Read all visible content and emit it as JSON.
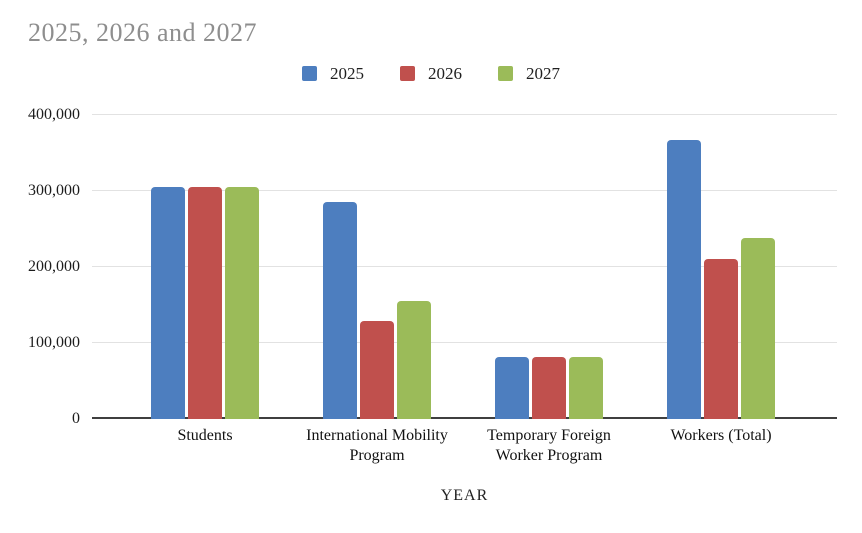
{
  "title": "2025, 2026 and 2027",
  "axis": {
    "x_title": "YEAR",
    "y_ticks": [
      "0",
      "100,000",
      "200,000",
      "300,000",
      "400,000"
    ]
  },
  "colors": {
    "series_2025": "#4d7ebf",
    "series_2026": "#c0504d",
    "series_2027": "#9bbb59",
    "title_text": "#8e8e8e",
    "axis_line": "#3f3f3f",
    "gridline": "#e2e2e2",
    "label_text": "#1c1c1c"
  },
  "chart_data": {
    "type": "bar",
    "title": "2025, 2026 and 2027",
    "xlabel": "YEAR",
    "ylabel": "",
    "categories": [
      "Students",
      "International Mobility Program",
      "Temporary Foreign Worker Program",
      "Workers (Total)"
    ],
    "series": [
      {
        "name": "2025",
        "color": "#4d7ebf",
        "values": [
          305900,
          285750,
          82000,
          367750
        ]
      },
      {
        "name": "2026",
        "color": "#c0504d",
        "values": [
          305900,
          128700,
          82000,
          210700
        ]
      },
      {
        "name": "2027",
        "color": "#9bbb59",
        "values": [
          305900,
          155700,
          82000,
          237700
        ]
      }
    ],
    "ylim": [
      0,
      400000
    ],
    "yticks": [
      0,
      100000,
      200000,
      300000,
      400000
    ],
    "grid": true,
    "legend_position": "top-center"
  }
}
